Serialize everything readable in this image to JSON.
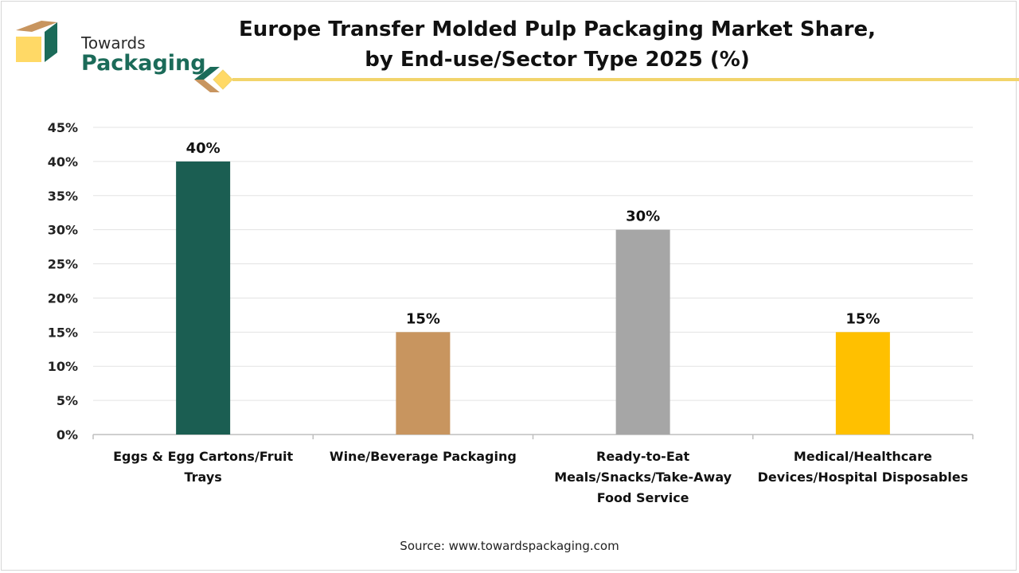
{
  "brand": {
    "name_line1": "Towards",
    "name_line2": "Packaging",
    "colors": {
      "green": "#1b6b59",
      "tan": "#c8955f",
      "yellow": "#ffd966",
      "gold": "#f2d46b"
    }
  },
  "source": "Source: www.towardspackaging.com",
  "chart_data": {
    "type": "bar",
    "title": "Europe Transfer Molded Pulp Packaging Market Share,\nby End-use/Sector Type 2025 (%)",
    "xlabel": "",
    "ylabel": "",
    "ylim": [
      0,
      45
    ],
    "yticks": [
      0,
      5,
      10,
      15,
      20,
      25,
      30,
      35,
      40,
      45
    ],
    "ytick_labels": [
      "0%",
      "5%",
      "10%",
      "15%",
      "20%",
      "25%",
      "30%",
      "35%",
      "40%",
      "45%"
    ],
    "grid": true,
    "categories": [
      [
        "Eggs & Egg Cartons/Fruit",
        "Trays"
      ],
      [
        "Wine/Beverage Packaging"
      ],
      [
        "Ready-to-Eat",
        "Meals/Snacks/Take-Away",
        "Food Service"
      ],
      [
        "Medical/Healthcare",
        "Devices/Hospital Disposables"
      ]
    ],
    "values": [
      40,
      15,
      30,
      15
    ],
    "value_labels": [
      "40%",
      "15%",
      "30%",
      "15%"
    ],
    "colors": [
      "#1b5e52",
      "#c8955f",
      "#a6a6a6",
      "#ffc000"
    ]
  }
}
